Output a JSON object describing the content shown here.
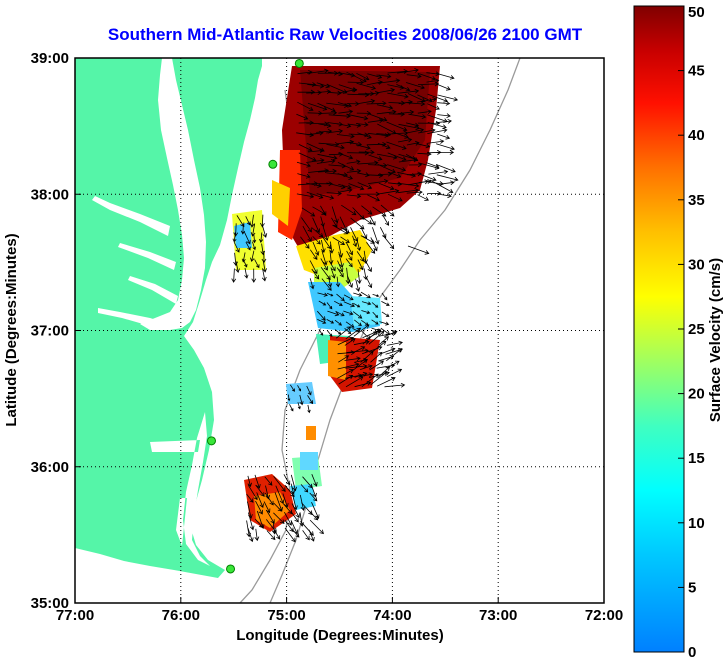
{
  "title": "Southern Mid-Atlantic Raw Velocities 2008/06/26 2100 GMT",
  "map": {
    "xlabel": "Longitude (Degrees:Minutes)",
    "ylabel": "Latitude (Degrees:Minutes)",
    "x_ticks": [
      {
        "value": -77,
        "label": "77:00"
      },
      {
        "value": -76,
        "label": "76:00"
      },
      {
        "value": -75,
        "label": "75:00"
      },
      {
        "value": -74,
        "label": "74:00"
      },
      {
        "value": -73,
        "label": "73:00"
      },
      {
        "value": -72,
        "label": "72:00"
      }
    ],
    "y_ticks": [
      {
        "value": 39,
        "label": "39:00"
      },
      {
        "value": 38,
        "label": "38:00"
      },
      {
        "value": 37,
        "label": "37:00"
      },
      {
        "value": 36,
        "label": "36:00"
      },
      {
        "value": 35,
        "label": "35:00"
      }
    ],
    "xlim": [
      -77,
      -72
    ],
    "ylim": [
      35,
      39
    ],
    "grid": "dotted",
    "colors": {
      "land": "#55f5a8",
      "water": "#ffffff",
      "isobath": "#9a9a9a",
      "arrow": "#000000",
      "site": "#39e639"
    },
    "sites": [
      {
        "lon": -74.88,
        "lat": 38.96
      },
      {
        "lon": -75.13,
        "lat": 38.22
      },
      {
        "lon": -75.71,
        "lat": 36.19
      },
      {
        "lon": -75.53,
        "lat": 35.25
      }
    ]
  },
  "colorbar": {
    "label": "Surface Velocity (cm/s)",
    "min": 0,
    "max": 50,
    "ticks": [
      0,
      5,
      10,
      15,
      20,
      25,
      30,
      35,
      40,
      45,
      50
    ],
    "colormap": "jet"
  }
}
